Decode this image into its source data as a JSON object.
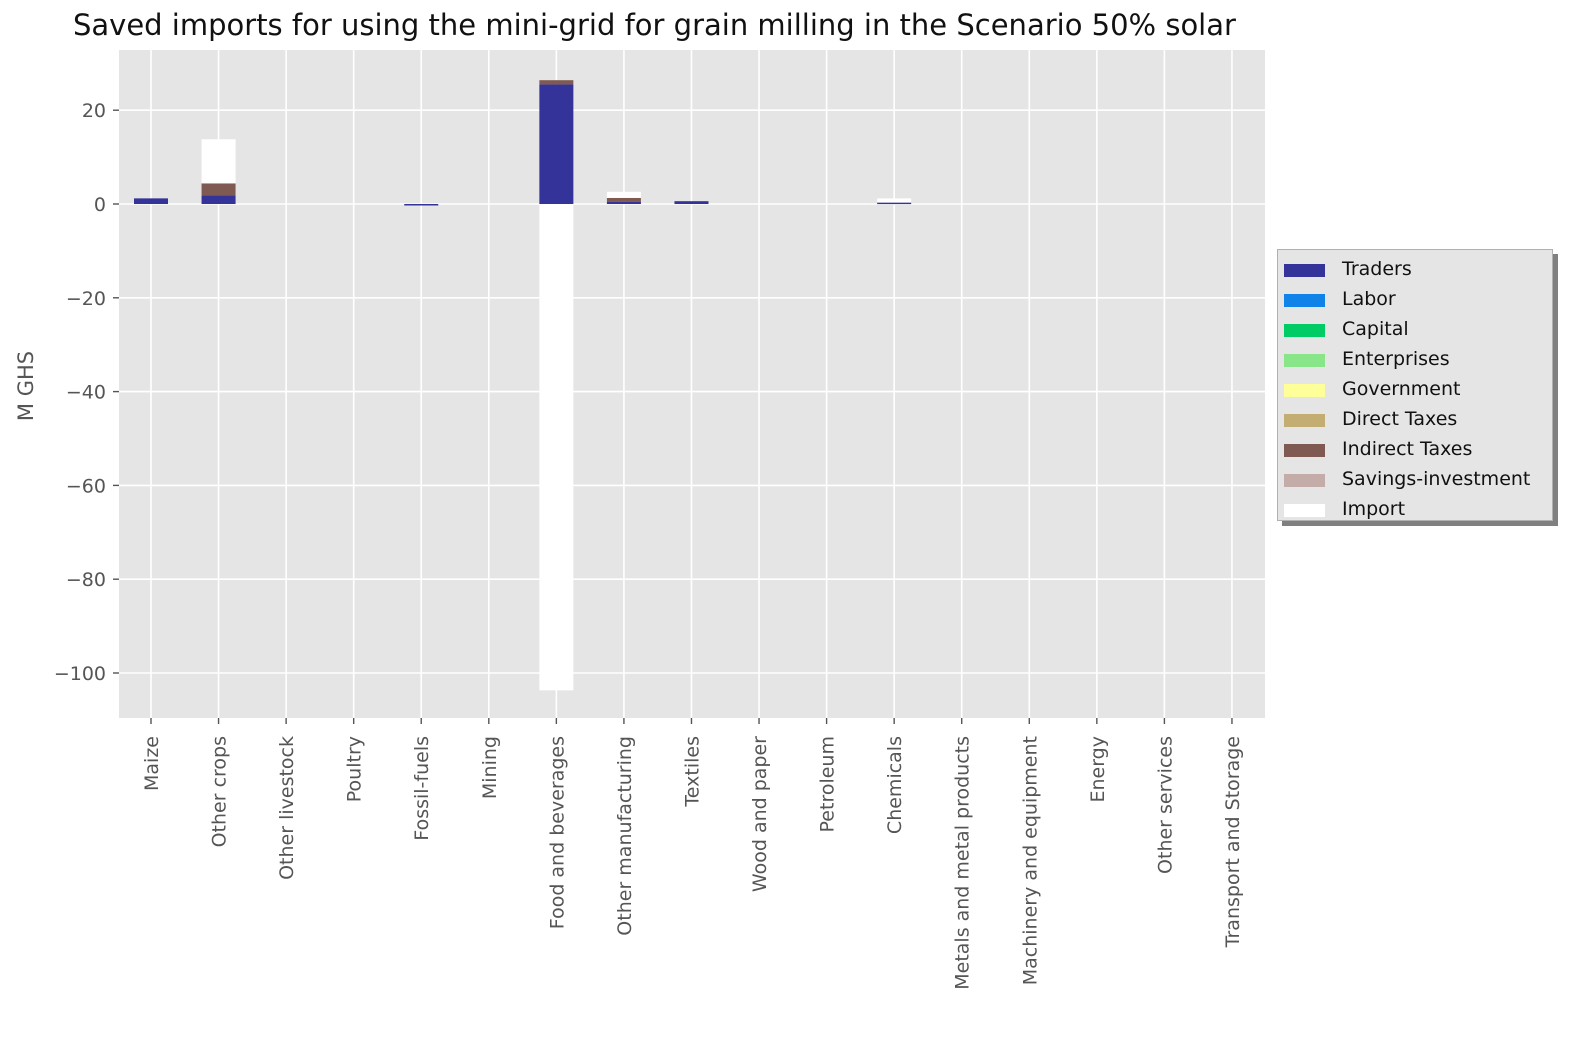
{
  "chart_data": {
    "type": "bar",
    "stacked": true,
    "title": "Saved imports for using the mini-grid for grain milling in the Scenario 50% solar",
    "xlabel": "",
    "ylabel": "M GHS",
    "ylim": [
      -110,
      33
    ],
    "yticks": [
      20,
      0,
      -20,
      -40,
      -60,
      -80,
      -100
    ],
    "ytick_labels": [
      "20",
      "0",
      "−20",
      "−40",
      "−60",
      "−80",
      "−100"
    ],
    "grid": true,
    "legend_position": "center-right-outside",
    "categories": [
      "Maize",
      "Other crops",
      "Other livestock",
      "Poultry",
      "Fossil-fuels",
      "Mining",
      "Food and beverages",
      "Other manufacturing",
      "Textiles",
      "Wood and paper",
      "Petroleum",
      "Chemicals",
      "Metals and metal products",
      "Machinery and equipment",
      "Energy",
      "Other services",
      "Transport and Storage"
    ],
    "series": [
      {
        "name": "Traders",
        "color": "#333399",
        "values": [
          1.2,
          1.8,
          0,
          0,
          -0.3,
          0,
          25.5,
          0.5,
          0.6,
          0,
          0,
          0.3,
          0,
          0,
          0,
          0,
          0
        ]
      },
      {
        "name": "Labor",
        "color": "#0f83e8",
        "values": [
          0,
          0,
          0,
          0,
          0,
          0,
          0,
          0,
          0,
          0,
          0,
          0,
          0,
          0,
          0,
          0,
          0
        ]
      },
      {
        "name": "Capital",
        "color": "#00cc66",
        "values": [
          0,
          0,
          0,
          0,
          0,
          0,
          0,
          0,
          0,
          0,
          0,
          0,
          0,
          0,
          0,
          0,
          0
        ]
      },
      {
        "name": "Enterprises",
        "color": "#88e688",
        "values": [
          0,
          0,
          0,
          0,
          0,
          0,
          0,
          0,
          0,
          0,
          0,
          0,
          0,
          0,
          0,
          0,
          0
        ]
      },
      {
        "name": "Government",
        "color": "#ffff99",
        "values": [
          0,
          0,
          0,
          0,
          0,
          0,
          0,
          0,
          0,
          0,
          0,
          0,
          0,
          0,
          0,
          0,
          0
        ]
      },
      {
        "name": "Direct Taxes",
        "color": "#c4ad72",
        "values": [
          0,
          0,
          0,
          0,
          0,
          0,
          0,
          0,
          0,
          0,
          0,
          0,
          0,
          0,
          0,
          0,
          0
        ]
      },
      {
        "name": "Indirect Taxes",
        "color": "#7f5a52",
        "values": [
          0,
          2.6,
          0,
          0,
          0,
          0,
          0.9,
          0.8,
          0,
          0,
          0,
          0,
          0,
          0,
          0,
          0,
          0
        ]
      },
      {
        "name": "Savings-investment",
        "color": "#c4aca8",
        "values": [
          0,
          0,
          0,
          0,
          0,
          0,
          0,
          0,
          0,
          0,
          0,
          0,
          0,
          0,
          0,
          0,
          0
        ]
      },
      {
        "name": "Import",
        "color": "#ffffff",
        "values": [
          0,
          9.4,
          0,
          0,
          0,
          0,
          -103.7,
          1.3,
          0,
          0,
          0,
          0.9,
          0,
          0,
          0,
          0,
          0
        ]
      }
    ]
  }
}
